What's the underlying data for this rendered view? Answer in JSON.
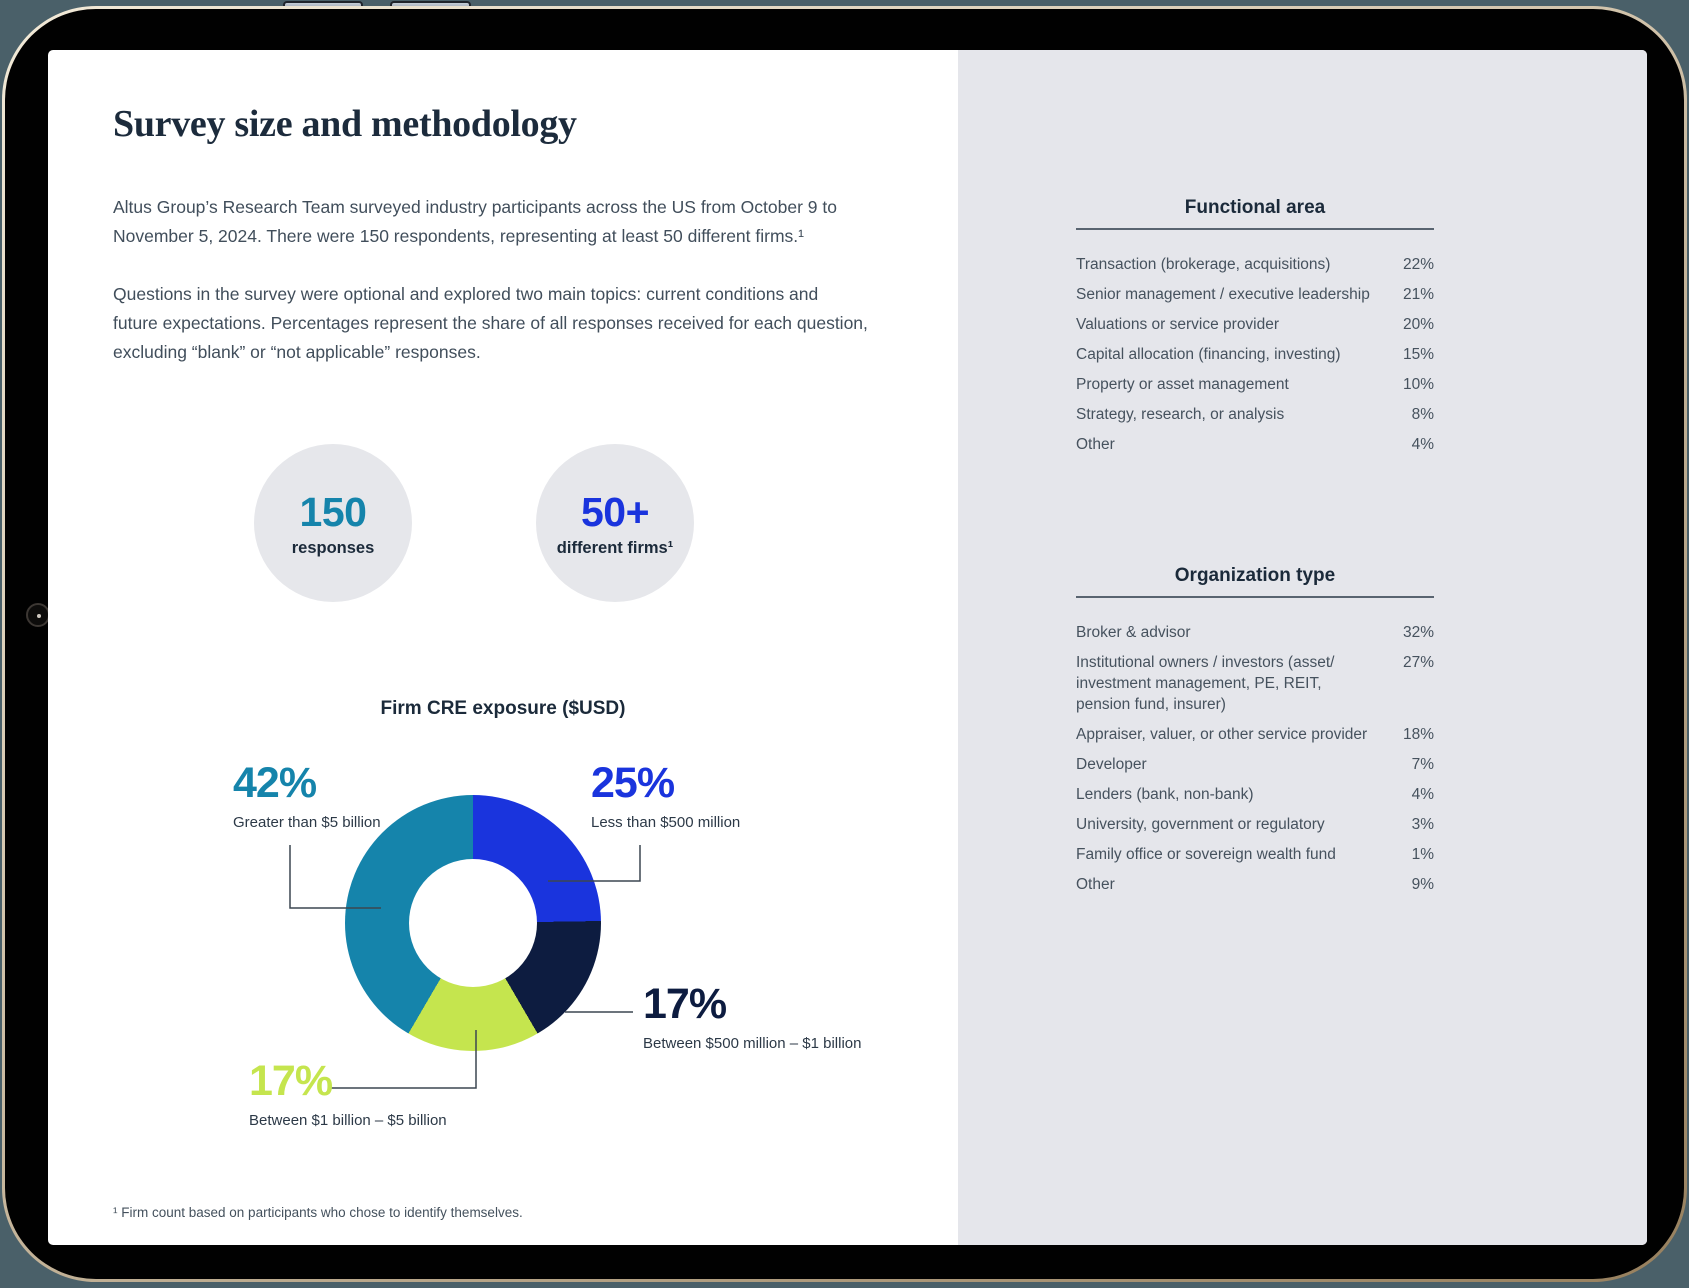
{
  "main": {
    "title": "Survey size and methodology",
    "paragraph1": "Altus Group’s Research Team surveyed industry participants across the US from October 9 to\nNovember 5, 2024. There were 150 respondents, representing at least 50 different firms.¹",
    "paragraph2": "Questions in the survey were optional and explored two main topics: current conditions and\nfuture expectations. Percentages represent the share of all responses received for each question,\nexcluding “blank” or “not applicable” responses.",
    "stats": [
      {
        "value": "150",
        "label": "responses",
        "color": "#1584ab"
      },
      {
        "value": "50+",
        "label": "different firms¹",
        "color": "#1a34dd"
      }
    ],
    "chart": {
      "title": "Firm CRE exposure ($USD)",
      "segments": [
        {
          "label": "Less than $500 million",
          "value": 25,
          "pct_label": "25%",
          "color": "#1a34dd"
        },
        {
          "label": "Between $500 million – $1 billion",
          "value": 17,
          "pct_label": "17%",
          "color": "#0d1c40"
        },
        {
          "label": "Between $1 billion – $5 billion",
          "value": 17,
          "pct_label": "17%",
          "color": "#c5e54e"
        },
        {
          "label": "Greater than $5 billion",
          "value": 42,
          "pct_label": "42%",
          "color": "#1584ab"
        }
      ]
    },
    "footnote": "¹ Firm count based on participants who chose to identify themselves."
  },
  "sidebar": {
    "functional_area": {
      "heading": "Functional area",
      "rows": [
        {
          "label": "Transaction (brokerage, acquisitions)",
          "value": "22%"
        },
        {
          "label": "Senior management / executive leadership",
          "value": "21%"
        },
        {
          "label": "Valuations or service provider",
          "value": "20%"
        },
        {
          "label": "Capital allocation (financing, investing)",
          "value": "15%"
        },
        {
          "label": "Property or asset management",
          "value": "10%"
        },
        {
          "label": "Strategy, research, or analysis",
          "value": "8%"
        },
        {
          "label": "Other",
          "value": "4%"
        }
      ]
    },
    "organization_type": {
      "heading": "Organization type",
      "rows": [
        {
          "label": "Broker & advisor",
          "value": "32%"
        },
        {
          "label": "Institutional owners / investors (asset/\ninvestment management, PE, REIT,\npension fund, insurer)",
          "value": "27%"
        },
        {
          "label": "Appraiser, valuer, or other service provider",
          "value": "18%"
        },
        {
          "label": "Developer",
          "value": "7%"
        },
        {
          "label": "Lenders (bank, non-bank)",
          "value": "4%"
        },
        {
          "label": "University, government or regulatory",
          "value": "3%"
        },
        {
          "label": "Family office or sovereign wealth fund",
          "value": "1%"
        },
        {
          "label": "Other",
          "value": "9%"
        }
      ]
    }
  },
  "chart_data": [
    {
      "type": "pie",
      "subtype": "donut",
      "title": "Firm CRE exposure ($USD)",
      "labels": [
        "Less than $500 million",
        "Between $500 million – $1 billion",
        "Between $1 billion – $5 billion",
        "Greater than $5 billion"
      ],
      "values": [
        25,
        17,
        17,
        42
      ],
      "colors": [
        "#1a34dd",
        "#0d1c40",
        "#c5e54e",
        "#1584ab"
      ],
      "start_angle_deg": 0,
      "direction": "clockwise",
      "legend_position": "callout-labels"
    },
    {
      "type": "table",
      "title": "Functional area",
      "rows": [
        [
          "Transaction (brokerage, acquisitions)",
          "22%"
        ],
        [
          "Senior management / executive leadership",
          "21%"
        ],
        [
          "Valuations or service provider",
          "20%"
        ],
        [
          "Capital allocation (financing, investing)",
          "15%"
        ],
        [
          "Property or asset management",
          "10%"
        ],
        [
          "Strategy, research, or analysis",
          "8%"
        ],
        [
          "Other",
          "4%"
        ]
      ]
    },
    {
      "type": "table",
      "title": "Organization type",
      "rows": [
        [
          "Broker & advisor",
          "32%"
        ],
        [
          "Institutional owners / investors (asset/ investment management, PE, REIT, pension fund, insurer)",
          "27%"
        ],
        [
          "Appraiser, valuer, or other service provider",
          "18%"
        ],
        [
          "Developer",
          "7%"
        ],
        [
          "Lenders (bank, non-bank)",
          "4%"
        ],
        [
          "University, government or regulatory",
          "3%"
        ],
        [
          "Family office or sovereign wealth fund",
          "1%"
        ],
        [
          "Other",
          "9%"
        ]
      ]
    }
  ]
}
